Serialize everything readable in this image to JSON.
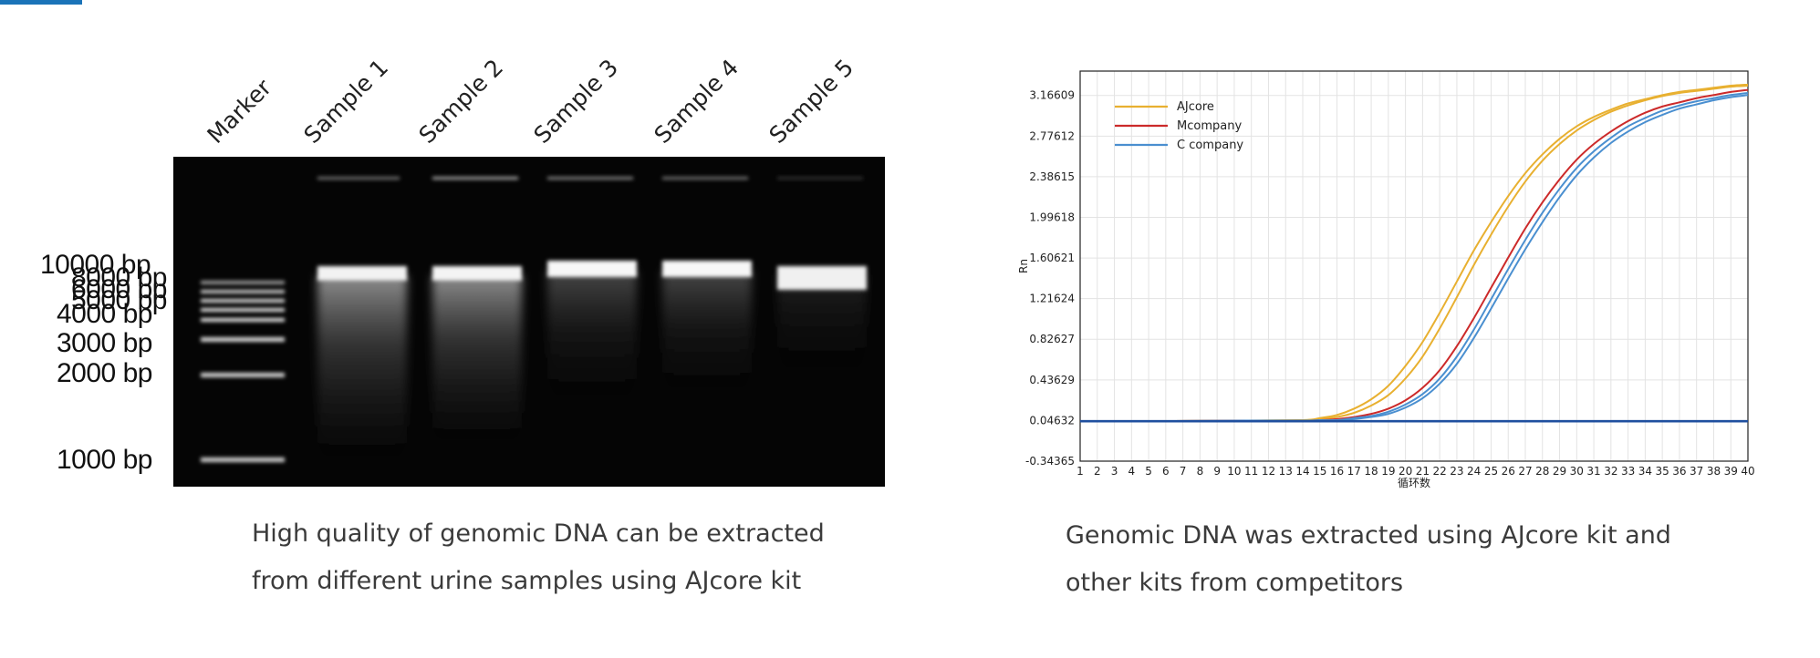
{
  "gel": {
    "lanes": [
      "Marker",
      "Sample 1",
      "Sample 2",
      "Sample 3",
      "Sample 4",
      "Sample 5"
    ],
    "ladder": [
      "10000 bp",
      "8000 bp",
      "6000 bp",
      "5000 bp",
      "4000 bp",
      "3000 bp",
      "2000 bp",
      "1000 bp"
    ],
    "caption_lines": [
      "High quality of genomic DNA can be extracted",
      "from different urine samples using AJcore kit"
    ]
  },
  "chart": {
    "caption_lines": [
      "Genomic DNA was extracted using AJcore kit and",
      "other kits from competitors"
    ]
  },
  "colors": {
    "accent": "#1a73b8",
    "ajcore": "#e8b030",
    "mcompany": "#cc2a2a",
    "ccompany": "#4a8fd0",
    "baseline": "#1f4f9f"
  },
  "chart_data": {
    "type": "line",
    "title": "",
    "xlabel": "循环数",
    "ylabel": "Rn",
    "xlim": [
      1,
      40
    ],
    "ylim": [
      -0.34365,
      3.4
    ],
    "xticks": [
      1,
      2,
      3,
      4,
      5,
      6,
      7,
      8,
      9,
      10,
      11,
      12,
      13,
      14,
      15,
      16,
      17,
      18,
      19,
      20,
      21,
      22,
      23,
      24,
      25,
      26,
      27,
      28,
      29,
      30,
      31,
      32,
      33,
      34,
      35,
      36,
      37,
      38,
      39,
      40
    ],
    "yticks": [
      -0.34365,
      0.04632,
      0.43629,
      0.82627,
      1.21624,
      1.60621,
      1.99618,
      2.38615,
      2.77612,
      3.16609
    ],
    "grid": true,
    "legend_position": "top-left",
    "series": [
      {
        "name": "AJcore",
        "color": "#e8b030",
        "x": [
          1,
          5,
          10,
          14,
          15,
          16,
          17,
          18,
          19,
          20,
          21,
          22,
          23,
          24,
          25,
          26,
          27,
          28,
          29,
          30,
          31,
          32,
          33,
          34,
          35,
          36,
          37,
          38,
          39,
          40
        ],
        "y": [
          0.04,
          0.04,
          0.045,
          0.05,
          0.07,
          0.1,
          0.16,
          0.25,
          0.38,
          0.57,
          0.8,
          1.08,
          1.38,
          1.68,
          1.95,
          2.2,
          2.42,
          2.6,
          2.75,
          2.87,
          2.96,
          3.03,
          3.09,
          3.13,
          3.17,
          3.2,
          3.22,
          3.24,
          3.26,
          3.27
        ]
      },
      {
        "name": "AJcore",
        "color": "#e8b030",
        "x": [
          1,
          5,
          10,
          14,
          15,
          16,
          17,
          18,
          19,
          20,
          21,
          22,
          23,
          24,
          25,
          26,
          27,
          28,
          29,
          30,
          31,
          32,
          33,
          34,
          35,
          36,
          37,
          38,
          39,
          40
        ],
        "y": [
          0.04,
          0.04,
          0.045,
          0.05,
          0.06,
          0.08,
          0.12,
          0.19,
          0.29,
          0.45,
          0.66,
          0.93,
          1.23,
          1.54,
          1.83,
          2.1,
          2.34,
          2.54,
          2.7,
          2.83,
          2.93,
          3.01,
          3.07,
          3.12,
          3.16,
          3.19,
          3.21,
          3.23,
          3.25,
          3.26
        ]
      },
      {
        "name": "Mcompany",
        "color": "#cc2a2a",
        "x": [
          1,
          5,
          10,
          14,
          15,
          16,
          17,
          18,
          19,
          20,
          21,
          22,
          23,
          24,
          25,
          26,
          27,
          28,
          29,
          30,
          31,
          32,
          33,
          34,
          35,
          36,
          37,
          38,
          39,
          40
        ],
        "y": [
          0.04,
          0.04,
          0.045,
          0.045,
          0.05,
          0.06,
          0.08,
          0.11,
          0.16,
          0.24,
          0.36,
          0.53,
          0.76,
          1.03,
          1.32,
          1.61,
          1.89,
          2.14,
          2.36,
          2.55,
          2.7,
          2.82,
          2.92,
          3,
          3.06,
          3.1,
          3.14,
          3.17,
          3.2,
          3.22
        ]
      },
      {
        "name": "C company",
        "color": "#4a8fd0",
        "x": [
          1,
          5,
          10,
          14,
          15,
          16,
          17,
          18,
          19,
          20,
          21,
          22,
          23,
          24,
          25,
          26,
          27,
          28,
          29,
          30,
          31,
          32,
          33,
          34,
          35,
          36,
          37,
          38,
          39,
          40
        ],
        "y": [
          0.04,
          0.04,
          0.045,
          0.045,
          0.05,
          0.05,
          0.07,
          0.09,
          0.13,
          0.2,
          0.3,
          0.45,
          0.66,
          0.92,
          1.21,
          1.5,
          1.78,
          2.04,
          2.27,
          2.47,
          2.63,
          2.76,
          2.87,
          2.95,
          3.02,
          3.07,
          3.11,
          3.14,
          3.17,
          3.19
        ]
      },
      {
        "name": "C company",
        "color": "#4a8fd0",
        "x": [
          1,
          5,
          10,
          14,
          15,
          16,
          17,
          18,
          19,
          20,
          21,
          22,
          23,
          24,
          25,
          26,
          27,
          28,
          29,
          30,
          31,
          32,
          33,
          34,
          35,
          36,
          37,
          38,
          39,
          40
        ],
        "y": [
          0.04,
          0.04,
          0.04,
          0.045,
          0.045,
          0.05,
          0.06,
          0.08,
          0.11,
          0.17,
          0.26,
          0.4,
          0.59,
          0.84,
          1.12,
          1.41,
          1.69,
          1.95,
          2.19,
          2.4,
          2.57,
          2.71,
          2.82,
          2.91,
          2.98,
          3.04,
          3.08,
          3.12,
          3.15,
          3.17
        ]
      },
      {
        "name": "",
        "color": "#1f4f9f",
        "x": [
          1,
          40
        ],
        "y": [
          0.04,
          0.04
        ]
      }
    ]
  }
}
